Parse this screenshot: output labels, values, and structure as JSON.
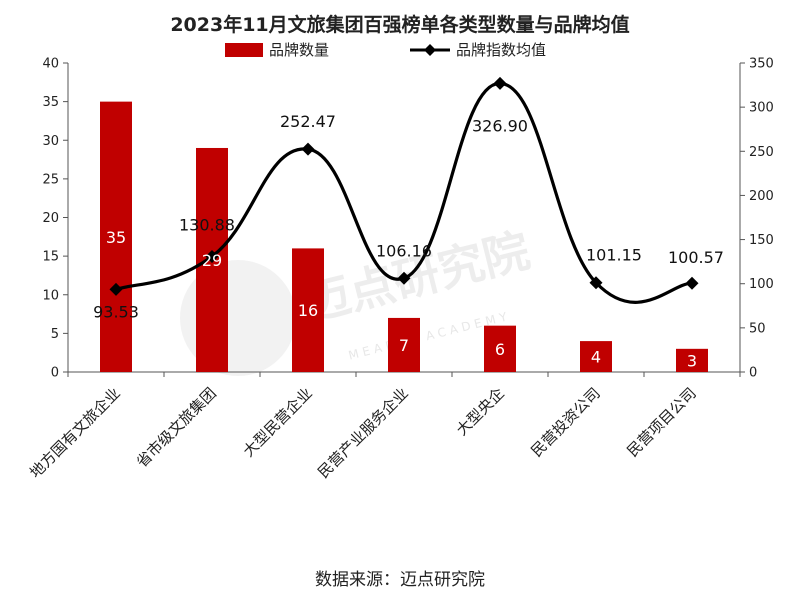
{
  "chart_data": {
    "type": "bar+line",
    "title": "2023年11月文旅集团百强榜单各类型数量与品牌均值",
    "categories": [
      "地方国有文旅企业",
      "省市级文旅集团",
      "大型民营企业",
      "民营产业服务企业",
      "大型央企",
      "民营投资公司",
      "民营项目公司"
    ],
    "series": [
      {
        "name": "品牌数量",
        "type": "bar",
        "axis": "left",
        "color": "#c00000",
        "values": [
          35,
          29,
          16,
          7,
          6,
          4,
          3
        ]
      },
      {
        "name": "品牌指数均值",
        "type": "line",
        "axis": "right",
        "color": "#000000",
        "values": [
          93.53,
          130.88,
          252.47,
          106.16,
          326.9,
          101.15,
          100.57
        ],
        "labels": [
          "93.53",
          "130.88",
          "252.47",
          "106.16",
          "326.90",
          "101.15",
          "100.57"
        ]
      }
    ],
    "ylim_left": [
      0,
      40
    ],
    "yticks_left": [
      0,
      5,
      10,
      15,
      20,
      25,
      30,
      35,
      40
    ],
    "ylim_right": [
      0,
      350
    ],
    "yticks_right": [
      0,
      50,
      100,
      150,
      200,
      250,
      300,
      350
    ],
    "legend_position": "top-center",
    "grid": false
  },
  "footer": {
    "source": "数据来源：迈点研究院"
  },
  "watermark": {
    "text": "迈点研究院",
    "sub": "MEADIN ACADEMY"
  }
}
